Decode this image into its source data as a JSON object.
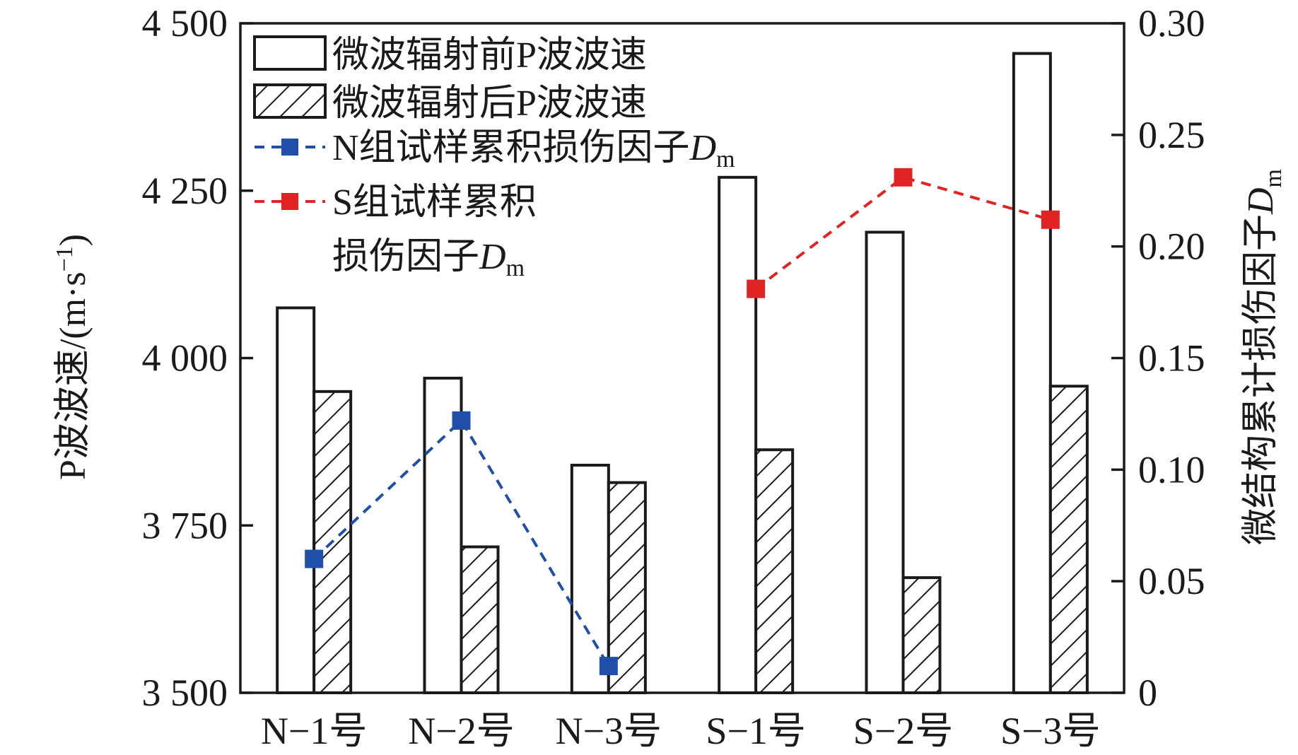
{
  "chart_data": {
    "type": "bar",
    "categories": [
      "N−1号",
      "N−2号",
      "N−3号",
      "S−1号",
      "S−2号",
      "S−3号"
    ],
    "ylabel_left": "P波波速/(m·s",
    "ylabel_left_sup": "−1",
    "ylabel_left_tail": ")",
    "ylabel_right": "微结构累计损伤因子",
    "ylabel_right_var": "D",
    "ylabel_right_sub": "m",
    "ylim_left": [
      3500,
      4500
    ],
    "ylim_right": [
      0,
      0.3
    ],
    "yticks_left": [
      "3 500",
      "3 750",
      "4 000",
      "4 250",
      "4 500"
    ],
    "yticks_left_values": [
      3500,
      3750,
      4000,
      4250,
      4500
    ],
    "yticks_right": [
      "0",
      "0.05",
      "0.10",
      "0.15",
      "0.20",
      "0.25",
      "0.30"
    ],
    "yticks_right_values": [
      0,
      0.05,
      0.1,
      0.15,
      0.2,
      0.25,
      0.3
    ],
    "series": [
      {
        "name": "微波辐射前P波波速",
        "axis": "left",
        "kind": "bar",
        "pattern": "none",
        "values": [
          4075,
          3970,
          3840,
          4270,
          4188,
          4455
        ]
      },
      {
        "name": "微波辐射后P波波速",
        "axis": "left",
        "kind": "bar",
        "pattern": "hatch",
        "values": [
          3950,
          3718,
          3814,
          3863,
          3672,
          3958
        ]
      }
    ],
    "lines": [
      {
        "name_prefix": "N组试样累积损伤因子",
        "name_var": "D",
        "name_sub": "m",
        "color": "#1f4fa8",
        "axis": "right",
        "style": "dashed",
        "x_indices": [
          0,
          1,
          2
        ],
        "values": [
          0.06,
          0.122,
          0.012
        ]
      },
      {
        "name_prefix": "S组试样累积",
        "name_line2": "损伤因子",
        "name_var": "D",
        "name_sub": "m",
        "color": "#e02424",
        "axis": "right",
        "style": "dashed",
        "x_indices": [
          3,
          4,
          5
        ],
        "values": [
          0.181,
          0.231,
          0.212
        ]
      }
    ],
    "legend_placement": "top-left",
    "grid": false
  }
}
